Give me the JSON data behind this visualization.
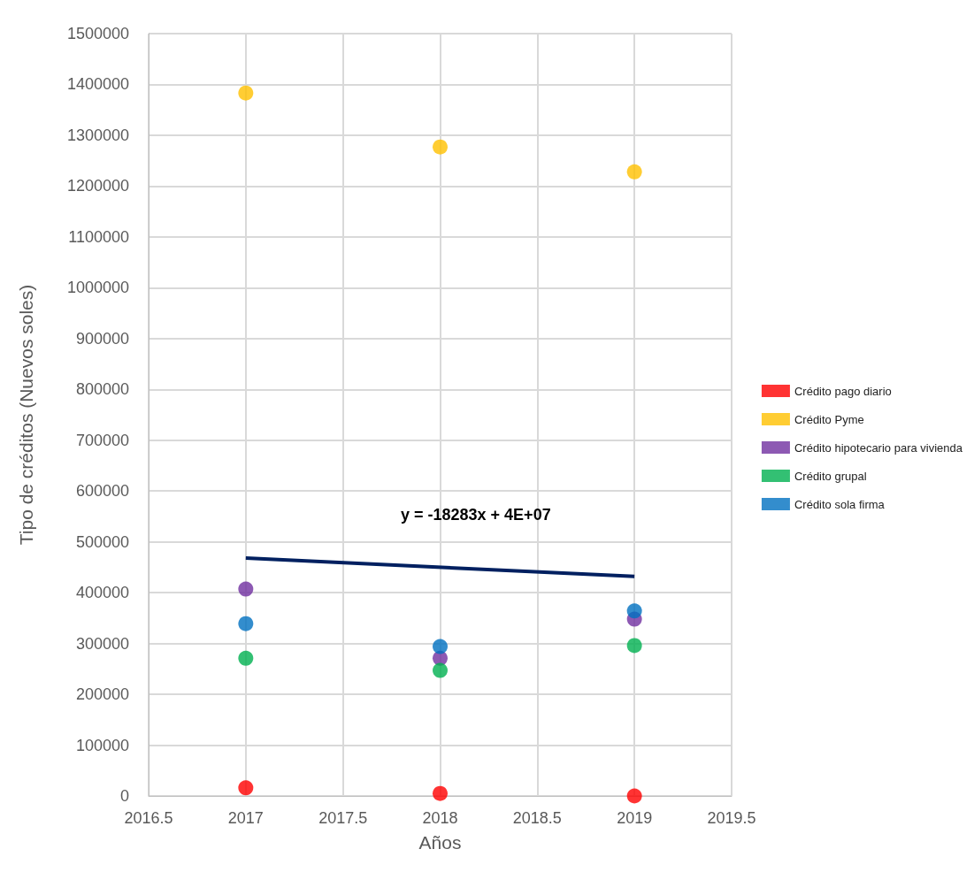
{
  "chart_data": {
    "type": "scatter",
    "xlabel": "Años",
    "ylabel": "Tipo de créditos (Nuevos soles)",
    "xlim": [
      2016.5,
      2019.5
    ],
    "xticks": [
      2016.5,
      2017,
      2017.5,
      2018,
      2018.5,
      2019,
      2019.5
    ],
    "ylim": [
      0,
      1500000
    ],
    "yticks": [
      0,
      100000,
      200000,
      300000,
      400000,
      500000,
      600000,
      700000,
      800000,
      900000,
      1000000,
      1100000,
      1200000,
      1300000,
      1400000,
      1500000
    ],
    "x": [
      2017,
      2018,
      2019
    ],
    "grid": true,
    "legend": "right",
    "marker": "circle",
    "series": [
      {
        "name": "Crédito pago diario",
        "color": "#ff0000",
        "values": [
          16000,
          5000,
          0
        ]
      },
      {
        "name": "Crédito Pyme",
        "color": "#ffc000",
        "values": [
          1383000,
          1277000,
          1228000
        ]
      },
      {
        "name": "Crédito hipotecario para vivienda",
        "color": "#7030a0",
        "values": [
          407000,
          271000,
          348000
        ]
      },
      {
        "name": "Crédito grupal",
        "color": "#00b050",
        "values": [
          271000,
          247000,
          296000
        ]
      },
      {
        "name": "Crédito sola firma",
        "color": "#0070c0",
        "values": [
          339000,
          294000,
          364000
        ]
      },
      {
        "type": "line",
        "color": "#002060",
        "x": [
          2017,
          2019
        ],
        "values": [
          468000,
          432000
        ],
        "marker": "none"
      }
    ],
    "annotations": [
      "y = -18283x + 4E+07"
    ]
  }
}
